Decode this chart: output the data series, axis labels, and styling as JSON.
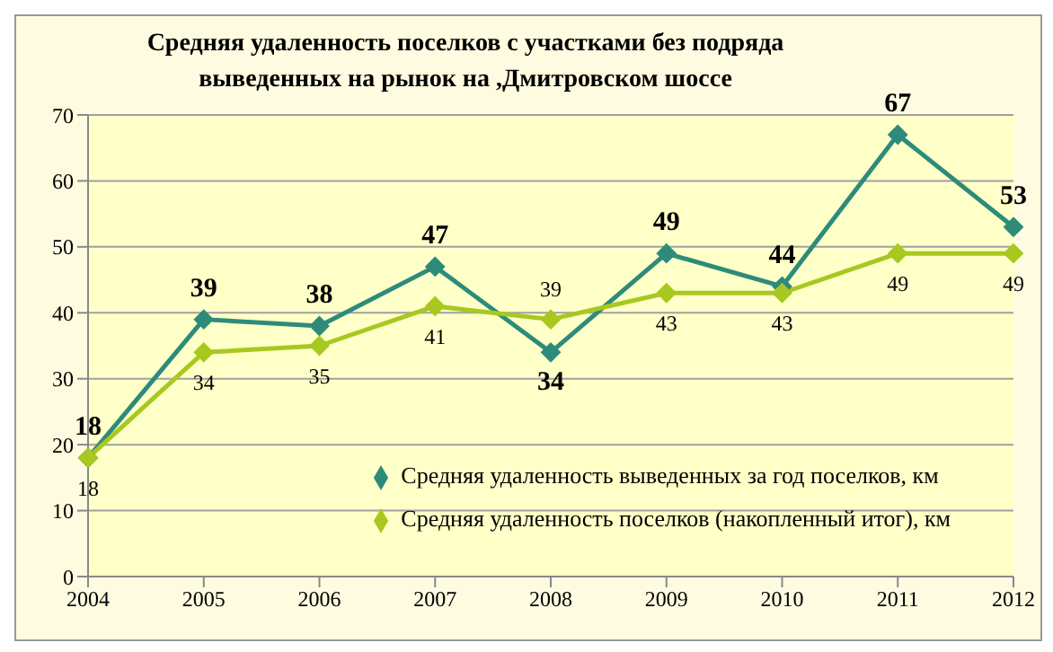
{
  "chart_data": {
    "type": "line",
    "title": "Средняя удаленность поселков с участками без подряда\nвыведенных на рынок на ,Дмитровском шоссе",
    "categories": [
      "2004",
      "2005",
      "2006",
      "2007",
      "2008",
      "2009",
      "2010",
      "2011",
      "2012"
    ],
    "series": [
      {
        "name": "Средняя удаленность выведенных за год поселков, км",
        "color": "#2e8b7a",
        "values": [
          18,
          39,
          38,
          47,
          34,
          49,
          44,
          67,
          53
        ]
      },
      {
        "name": "Средняя удаленность поселков (накопленный итог), км",
        "color": "#a8c820",
        "values": [
          18,
          34,
          35,
          41,
          39,
          43,
          43,
          49,
          49
        ]
      }
    ],
    "ylim": [
      0,
      70
    ],
    "yticks": [
      0,
      10,
      20,
      30,
      40,
      50,
      60,
      70
    ],
    "grid": "y",
    "legend": "bottom right",
    "marker": "diamond",
    "line_style": "solid",
    "data_labels": true
  }
}
